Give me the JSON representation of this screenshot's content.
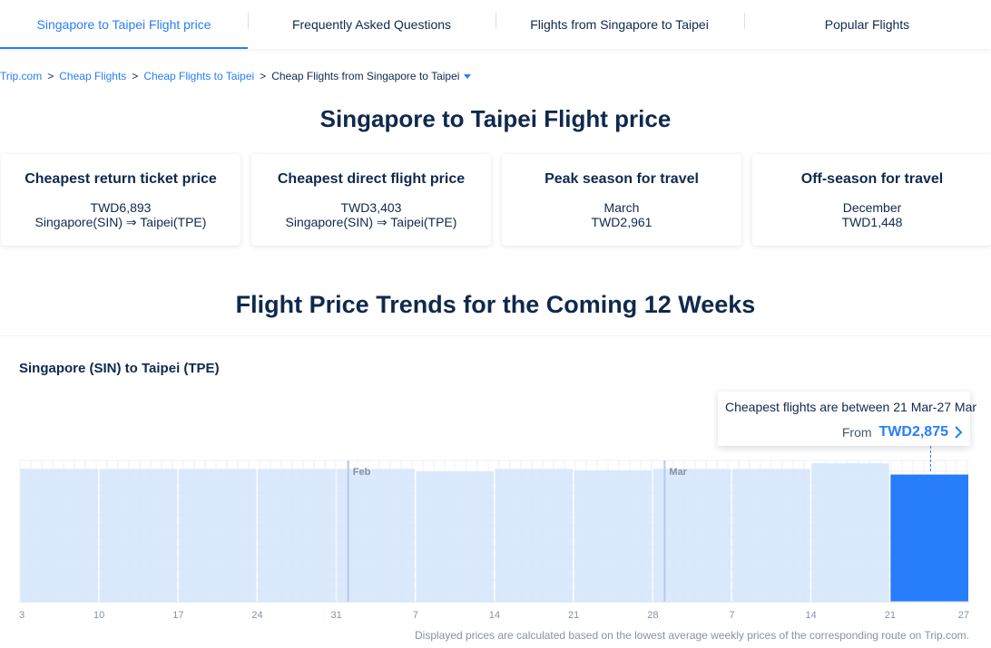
{
  "tabs": [
    {
      "label": "Singapore to Taipei Flight price",
      "active": true
    },
    {
      "label": "Frequently Asked Questions",
      "active": false
    },
    {
      "label": "Flights from Singapore to Taipei",
      "active": false
    },
    {
      "label": "Popular Flights",
      "active": false
    }
  ],
  "breadcrumb": {
    "items": [
      "Trip.com",
      "Cheap Flights",
      "Cheap Flights to Taipei"
    ],
    "separator": ">",
    "current": "Cheap Flights from Singapore to Taipei"
  },
  "page_title": "Singapore to Taipei Flight price",
  "cards": [
    {
      "title": "Cheapest return ticket price",
      "line1": "TWD6,893",
      "line2": "Singapore(SIN) ⇒ Taipei(TPE)"
    },
    {
      "title": "Cheapest direct flight price",
      "line1": "TWD3,403",
      "line2": "Singapore(SIN) ⇒ Taipei(TPE)"
    },
    {
      "title": "Peak season for travel",
      "line1": "March",
      "line2": "TWD2,961"
    },
    {
      "title": "Off-season for travel",
      "line1": "December",
      "line2": "TWD1,448"
    }
  ],
  "trends_title": "Flight Price Trends for the Coming 12 Weeks",
  "route_label": "Singapore (SIN) to Taipei (TPE)",
  "tooltip": {
    "text": "Cheapest flights are between 21 Mar-27 Mar",
    "from_label": "From",
    "price": "TWD2,875"
  },
  "disclaimer": "Displayed prices are calculated based on the lowest average weekly prices of the corresponding route on Trip.com.",
  "colors": {
    "accent": "#287dfa",
    "bar": "#d5e5fd",
    "bar_highlight": "#287dfa",
    "text": "#0f294d"
  },
  "chart_data": {
    "type": "bar",
    "x_ticks": [
      "3",
      "10",
      "17",
      "24",
      "31",
      "7",
      "14",
      "21",
      "28",
      "7",
      "14",
      "21",
      "27"
    ],
    "weeks": [
      "3-10",
      "10-17",
      "17-24",
      "24-31",
      "31-7",
      "7-14",
      "14-21",
      "21-28",
      "28-7",
      "7-14",
      "14-21",
      "21-27"
    ],
    "values": [
      0.94,
      0.94,
      0.94,
      0.94,
      0.94,
      0.92,
      0.94,
      0.93,
      0.94,
      0.94,
      0.98,
      0.9
    ],
    "highlight_index": 11,
    "month_markers": [
      {
        "label": "Feb",
        "after_week_tick": 4.15
      },
      {
        "label": "Mar",
        "after_week_tick": 8.15
      }
    ],
    "grid": true
  }
}
